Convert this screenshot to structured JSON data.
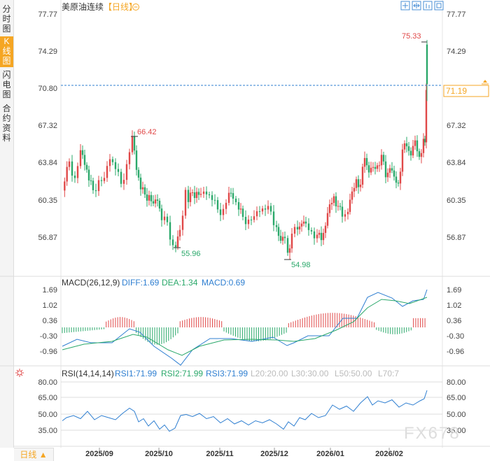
{
  "header": {
    "title": "美原油连续",
    "period": "【日线】",
    "toggle_icon": "circle-minus-icon",
    "tools": [
      "crosshair-icon",
      "move-icon",
      "bar-chart-icon",
      "expand-icon"
    ]
  },
  "sidebar": {
    "tabs": [
      {
        "label": "分时图",
        "active": false
      },
      {
        "label": "K线图",
        "active": true
      },
      {
        "label": "闪电图",
        "active": false
      },
      {
        "label": "合约资料",
        "active": false
      }
    ]
  },
  "colors": {
    "up": "#e04848",
    "down": "#2aa86a",
    "blue": "#2f7fd1",
    "orange": "#f5a623",
    "ref": "#f5a623"
  },
  "price_axis": {
    "ticks": [
      "77.77",
      "74.29",
      "70.80",
      "67.32",
      "63.84",
      "60.35",
      "56.87"
    ]
  },
  "price_marks": {
    "current": "71.19",
    "high": "75.33",
    "peak1": "66.42",
    "low1": "55.96",
    "low2": "54.98"
  },
  "macd": {
    "params": "MACD(26,12,9)",
    "diff": "DIFF:1.69",
    "dea": "DEA:1.34",
    "macd": "MACD:0.69",
    "ticks": [
      "1.69",
      "1.02",
      "0.36",
      "-0.30",
      "-0.96"
    ]
  },
  "rsi": {
    "params": "RSI(14,14,14)",
    "rsi1": "RSI1:71.99",
    "rsi2": "RSI2:71.99",
    "rsi3": "RSI3:71.99",
    "l20": "L20:20.00",
    "l30": "L30:30.00",
    "l50": "L50:50.00",
    "l70": "L70:7",
    "ticks": [
      "80.00",
      "65.00",
      "50.00",
      "35.00"
    ]
  },
  "dates": [
    "2025/09",
    "2025/10",
    "2025/11",
    "2025/12",
    "2026/01",
    "2026/02"
  ],
  "bottom": {
    "period": "日线 ▲"
  },
  "watermark": "FX678"
}
